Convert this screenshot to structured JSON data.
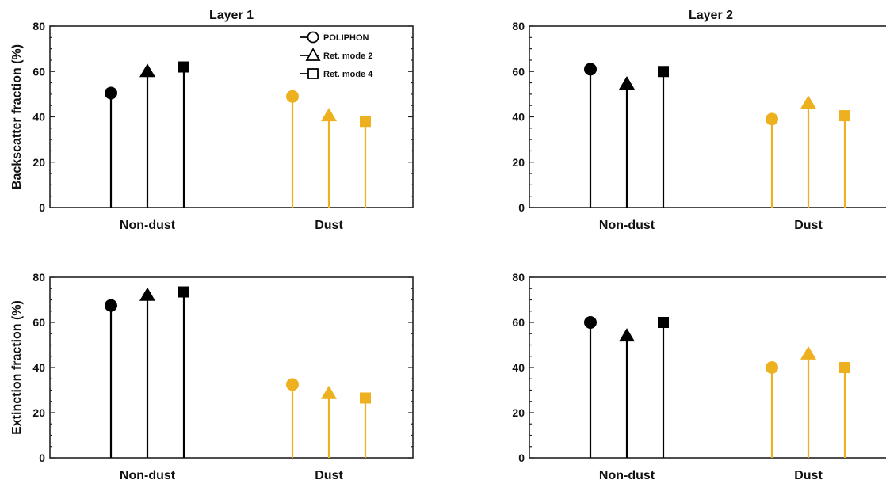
{
  "colors": {
    "non_dust": "#000000",
    "dust": "#EDB120"
  },
  "legend": {
    "placement": "top-right of first panel",
    "entries": [
      {
        "label": "POLIPHON",
        "marker": "circle"
      },
      {
        "label": "Ret. mode 2",
        "marker": "triangle"
      },
      {
        "label": "Ret. mode 4",
        "marker": "square"
      }
    ]
  },
  "chart_data": [
    {
      "type": "stem",
      "title": "Layer 1",
      "ylabel": "Backscatter fraction (%)",
      "ylim": [
        0,
        80
      ],
      "yticks": [
        0,
        20,
        40,
        60,
        80
      ],
      "categories": [
        "Non-dust",
        "Dust"
      ],
      "series": [
        {
          "name": "POLIPHON",
          "marker": "circle",
          "values": [
            50.5,
            49
          ]
        },
        {
          "name": "Ret. mode 2",
          "marker": "triangle",
          "values": [
            60,
            40.5
          ]
        },
        {
          "name": "Ret. mode 4",
          "marker": "square",
          "values": [
            62,
            38
          ]
        }
      ]
    },
    {
      "type": "stem",
      "title": "Layer 2",
      "ylabel": "",
      "ylim": [
        0,
        80
      ],
      "yticks": [
        0,
        20,
        40,
        60,
        80
      ],
      "categories": [
        "Non-dust",
        "Dust"
      ],
      "series": [
        {
          "name": "POLIPHON",
          "marker": "circle",
          "values": [
            61,
            39
          ]
        },
        {
          "name": "Ret. mode 2",
          "marker": "triangle",
          "values": [
            54.5,
            46
          ]
        },
        {
          "name": "Ret. mode 4",
          "marker": "square",
          "values": [
            60,
            40.5
          ]
        }
      ]
    },
    {
      "type": "stem",
      "title": "",
      "ylabel": "Extinction fraction (%)",
      "ylim": [
        0,
        80
      ],
      "yticks": [
        0,
        20,
        40,
        60,
        80
      ],
      "categories": [
        "Non-dust",
        "Dust"
      ],
      "series": [
        {
          "name": "POLIPHON",
          "marker": "circle",
          "values": [
            67.5,
            32.5
          ]
        },
        {
          "name": "Ret. mode 2",
          "marker": "triangle",
          "values": [
            72,
            28.5
          ]
        },
        {
          "name": "Ret. mode 4",
          "marker": "square",
          "values": [
            73.5,
            26.5
          ]
        }
      ]
    },
    {
      "type": "stem",
      "title": "",
      "ylabel": "",
      "ylim": [
        0,
        80
      ],
      "yticks": [
        0,
        20,
        40,
        60,
        80
      ],
      "categories": [
        "Non-dust",
        "Dust"
      ],
      "series": [
        {
          "name": "POLIPHON",
          "marker": "circle",
          "values": [
            60,
            40
          ]
        },
        {
          "name": "Ret. mode 2",
          "marker": "triangle",
          "values": [
            54,
            46
          ]
        },
        {
          "name": "Ret. mode 4",
          "marker": "square",
          "values": [
            60,
            40
          ]
        }
      ]
    }
  ]
}
